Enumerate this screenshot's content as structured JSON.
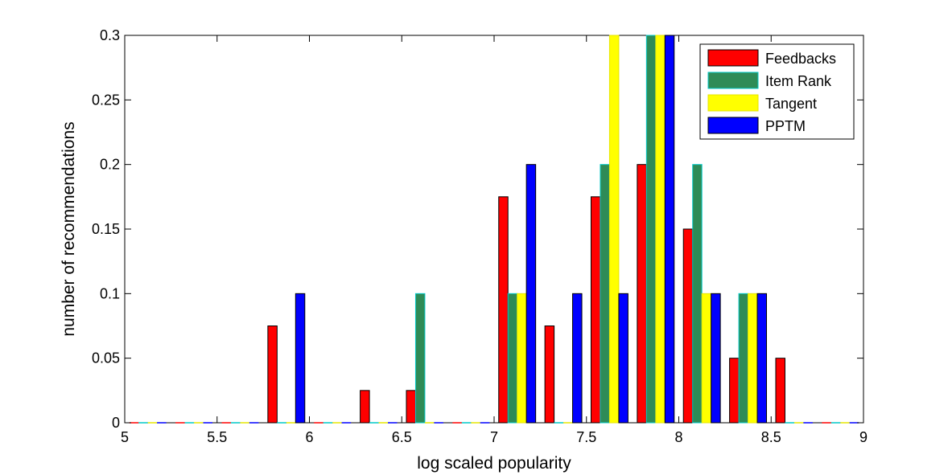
{
  "chart_data": {
    "type": "bar",
    "title": "",
    "xlabel": "log scaled popularity",
    "ylabel": "number of recommendations",
    "xlim": [
      5,
      9
    ],
    "ylim": [
      0,
      0.3
    ],
    "grid": false,
    "legend_position": "top-right",
    "x_ticks": [
      "5",
      "5.5",
      "6",
      "6.5",
      "7",
      "7.5",
      "8",
      "8.5",
      "9"
    ],
    "y_ticks": [
      "0",
      "0.05",
      "0.1",
      "0.15",
      "0.2",
      "0.25",
      "0.3"
    ],
    "x": [
      5.125,
      5.375,
      5.625,
      5.875,
      6.125,
      6.375,
      6.625,
      6.875,
      7.125,
      7.375,
      7.625,
      7.875,
      8.125,
      8.375,
      8.625,
      8.875
    ],
    "series": [
      {
        "name": "Feedbacks",
        "color": "#ff0000",
        "edge": "#000000",
        "values": [
          0,
          0,
          0,
          0.075,
          0,
          0.025,
          0.025,
          0,
          0.175,
          0.075,
          0.175,
          0.2,
          0.15,
          0.05,
          0.05,
          0
        ]
      },
      {
        "name": "Item Rank",
        "color": "#2e8b57",
        "edge": "#00c8c8",
        "values": [
          0,
          0,
          0,
          0,
          0,
          0,
          0.1,
          0,
          0.1,
          0,
          0.2,
          0.3,
          0.2,
          0.1,
          0,
          0
        ]
      },
      {
        "name": "Tangent",
        "color": "#ffff00",
        "edge": "#e6e600",
        "values": [
          0,
          0,
          0,
          0,
          0,
          0,
          0,
          0,
          0.1,
          0,
          0.3,
          0.3,
          0.1,
          0.1,
          0,
          0
        ]
      },
      {
        "name": "PPTM",
        "color": "#0000ff",
        "edge": "#000000",
        "values": [
          0,
          0,
          0,
          0.1,
          0,
          0,
          0,
          0,
          0.2,
          0.1,
          0.1,
          0.3,
          0.1,
          0.1,
          0,
          0
        ]
      }
    ]
  }
}
